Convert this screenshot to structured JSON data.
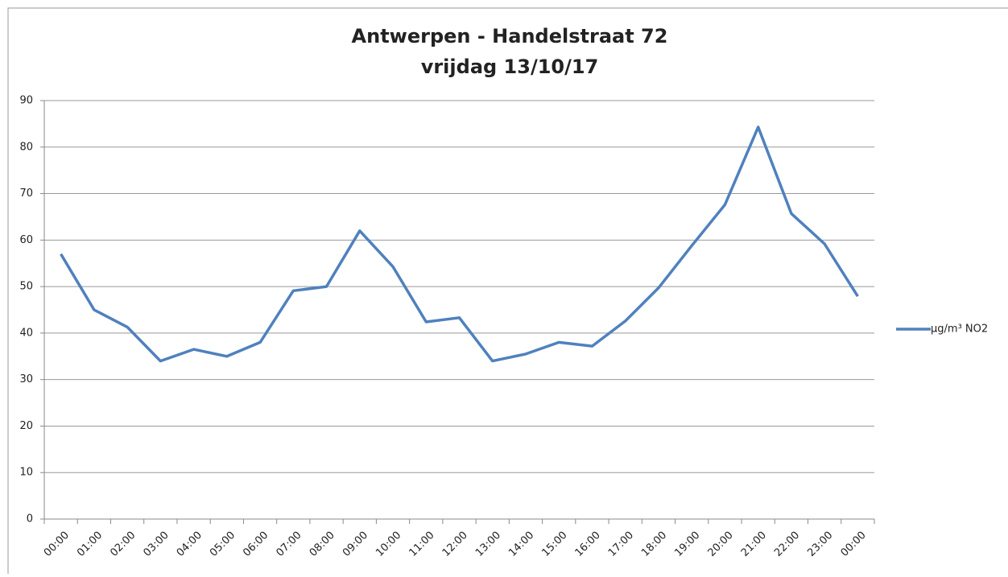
{
  "chart_data": {
    "type": "line",
    "title": "Antwerpen - Handelstraat 72",
    "subtitle": "vrijdag 13/10/17",
    "categories": [
      "00:00",
      "01:00",
      "02:00",
      "03:00",
      "04:00",
      "05:00",
      "06:00",
      "07:00",
      "08:00",
      "09:00",
      "10:00",
      "11:00",
      "12:00",
      "13:00",
      "14:00",
      "15:00",
      "16:00",
      "17:00",
      "18:00",
      "19:00",
      "20:00",
      "21:00",
      "22:00",
      "23:00",
      "00:00"
    ],
    "series": [
      {
        "name": "µg/m³ NO2",
        "color": "#4f81bd",
        "values": [
          57,
          45,
          41.3,
          34,
          36.5,
          35,
          38,
          49.1,
          50,
          62,
          54.3,
          42.4,
          43.3,
          34,
          35.5,
          38,
          37.2,
          42.6,
          49.7,
          58.8,
          67.6,
          84.3,
          65.7,
          59.2,
          47.9
        ]
      }
    ],
    "ylim": [
      0,
      90
    ],
    "yticks": [
      0,
      10,
      20,
      30,
      40,
      50,
      60,
      70,
      80,
      90
    ],
    "grid": true,
    "legend": "right"
  }
}
